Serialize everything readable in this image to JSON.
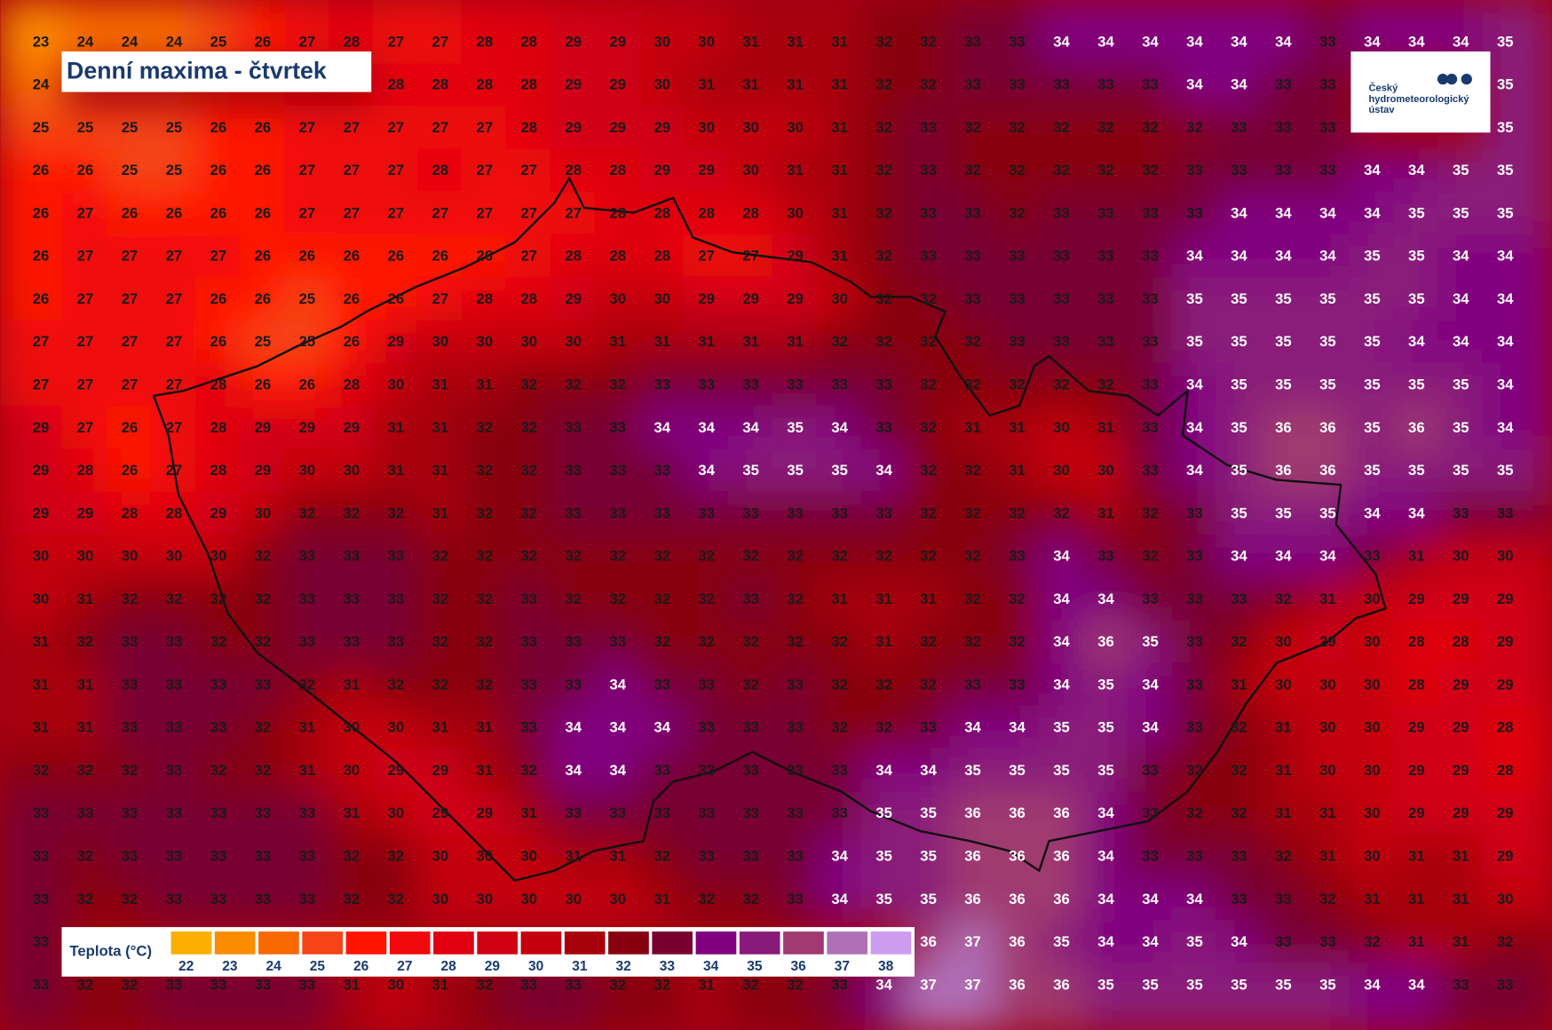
{
  "title": "Denní maxima - čtvrtek",
  "logo": {
    "lines": [
      "Český",
      "hydrometeorologický",
      "ústav"
    ]
  },
  "legend": {
    "title": "Teplota (°C)",
    "items": [
      {
        "value": 22,
        "color": "#fbb000"
      },
      {
        "value": 23,
        "color": "#fb8c00"
      },
      {
        "value": 24,
        "color": "#f86a00"
      },
      {
        "value": 25,
        "color": "#f44418"
      },
      {
        "value": 26,
        "color": "#ff1400"
      },
      {
        "value": 27,
        "color": "#f00a0a"
      },
      {
        "value": 28,
        "color": "#e00010"
      },
      {
        "value": 29,
        "color": "#d00012"
      },
      {
        "value": 30,
        "color": "#c4000e"
      },
      {
        "value": 31,
        "color": "#a8000a"
      },
      {
        "value": 32,
        "color": "#880010"
      },
      {
        "value": 33,
        "color": "#780030"
      },
      {
        "value": 34,
        "color": "#820080"
      },
      {
        "value": 35,
        "color": "#8a1a7a"
      },
      {
        "value": 36,
        "color": "#a03a70"
      },
      {
        "value": 37,
        "color": "#b070b8"
      },
      {
        "value": 38,
        "color": "#cc9cf0"
      }
    ]
  },
  "grid": {
    "rows": [
      [
        23,
        24,
        24,
        24,
        25,
        26,
        27,
        28,
        27,
        27,
        28,
        28,
        29,
        29,
        30,
        30,
        31,
        31,
        31,
        32,
        32,
        33,
        33,
        34,
        34,
        34,
        34,
        34,
        34,
        33,
        34,
        34,
        34,
        35
      ],
      [
        24,
        null,
        null,
        null,
        null,
        null,
        null,
        null,
        28,
        28,
        28,
        28,
        29,
        29,
        30,
        31,
        31,
        31,
        31,
        32,
        32,
        33,
        33,
        33,
        33,
        33,
        34,
        34,
        33,
        33,
        null,
        null,
        null,
        35
      ],
      [
        25,
        25,
        25,
        25,
        26,
        26,
        27,
        27,
        27,
        27,
        27,
        28,
        29,
        29,
        29,
        30,
        30,
        30,
        31,
        32,
        33,
        32,
        32,
        32,
        32,
        32,
        32,
        33,
        33,
        33,
        null,
        null,
        null,
        35
      ],
      [
        26,
        26,
        25,
        25,
        26,
        26,
        27,
        27,
        27,
        28,
        27,
        27,
        28,
        28,
        29,
        29,
        30,
        31,
        31,
        32,
        33,
        32,
        32,
        32,
        32,
        32,
        33,
        33,
        33,
        33,
        34,
        34,
        35,
        35
      ],
      [
        26,
        27,
        26,
        26,
        26,
        26,
        27,
        27,
        27,
        27,
        27,
        27,
        27,
        28,
        28,
        28,
        28,
        30,
        31,
        32,
        33,
        33,
        32,
        33,
        33,
        33,
        33,
        34,
        34,
        34,
        34,
        35,
        35,
        35
      ],
      [
        26,
        27,
        27,
        27,
        27,
        26,
        26,
        26,
        26,
        26,
        26,
        27,
        28,
        28,
        28,
        27,
        27,
        29,
        31,
        32,
        33,
        33,
        33,
        33,
        33,
        33,
        34,
        34,
        34,
        34,
        35,
        35,
        34,
        34
      ],
      [
        26,
        27,
        27,
        27,
        26,
        26,
        25,
        26,
        26,
        27,
        28,
        28,
        29,
        30,
        30,
        29,
        29,
        29,
        30,
        32,
        32,
        33,
        33,
        33,
        33,
        33,
        35,
        35,
        35,
        35,
        35,
        35,
        34,
        34
      ],
      [
        27,
        27,
        27,
        27,
        26,
        25,
        25,
        26,
        29,
        30,
        30,
        30,
        30,
        31,
        31,
        31,
        31,
        31,
        32,
        32,
        32,
        32,
        33,
        33,
        33,
        33,
        35,
        35,
        35,
        35,
        35,
        34,
        34,
        34
      ],
      [
        27,
        27,
        27,
        27,
        28,
        26,
        26,
        28,
        30,
        31,
        31,
        32,
        32,
        32,
        33,
        33,
        33,
        33,
        33,
        33,
        32,
        32,
        32,
        32,
        32,
        33,
        34,
        35,
        35,
        35,
        35,
        35,
        35,
        34
      ],
      [
        29,
        27,
        26,
        27,
        28,
        29,
        29,
        29,
        31,
        31,
        32,
        32,
        33,
        33,
        34,
        34,
        34,
        35,
        34,
        33,
        32,
        31,
        31,
        30,
        31,
        33,
        34,
        35,
        36,
        36,
        35,
        36,
        35,
        34
      ],
      [
        29,
        28,
        26,
        27,
        28,
        29,
        30,
        30,
        31,
        31,
        32,
        32,
        33,
        33,
        33,
        34,
        35,
        35,
        35,
        34,
        32,
        32,
        31,
        30,
        30,
        33,
        34,
        35,
        36,
        36,
        35,
        35,
        35,
        35
      ],
      [
        29,
        29,
        28,
        28,
        29,
        30,
        32,
        32,
        32,
        31,
        32,
        32,
        33,
        33,
        33,
        33,
        33,
        33,
        33,
        33,
        32,
        32,
        32,
        32,
        31,
        32,
        33,
        35,
        35,
        35,
        34,
        34,
        33,
        33
      ],
      [
        30,
        30,
        30,
        30,
        30,
        32,
        33,
        33,
        33,
        32,
        32,
        32,
        32,
        32,
        32,
        32,
        32,
        32,
        32,
        32,
        32,
        32,
        33,
        34,
        33,
        32,
        33,
        34,
        34,
        34,
        33,
        31,
        30,
        30
      ],
      [
        30,
        31,
        32,
        32,
        32,
        32,
        33,
        33,
        33,
        32,
        32,
        33,
        32,
        32,
        32,
        32,
        33,
        32,
        31,
        31,
        31,
        32,
        32,
        34,
        34,
        33,
        33,
        33,
        32,
        31,
        30,
        29,
        29,
        29
      ],
      [
        31,
        32,
        33,
        33,
        32,
        32,
        33,
        33,
        33,
        32,
        32,
        33,
        33,
        33,
        32,
        32,
        32,
        32,
        32,
        31,
        32,
        32,
        32,
        34,
        36,
        35,
        33,
        32,
        30,
        29,
        30,
        28,
        28,
        29
      ],
      [
        31,
        31,
        33,
        33,
        33,
        33,
        32,
        31,
        32,
        32,
        32,
        33,
        33,
        34,
        33,
        33,
        32,
        33,
        32,
        32,
        32,
        33,
        33,
        34,
        35,
        34,
        33,
        31,
        30,
        30,
        30,
        28,
        29,
        29
      ],
      [
        31,
        31,
        33,
        33,
        33,
        32,
        31,
        30,
        30,
        31,
        31,
        33,
        34,
        34,
        34,
        33,
        33,
        33,
        32,
        32,
        33,
        34,
        34,
        35,
        35,
        34,
        33,
        32,
        31,
        30,
        30,
        29,
        29,
        28
      ],
      [
        32,
        32,
        32,
        33,
        32,
        32,
        31,
        30,
        29,
        29,
        31,
        32,
        34,
        34,
        33,
        33,
        33,
        33,
        33,
        34,
        34,
        35,
        35,
        35,
        35,
        33,
        32,
        32,
        31,
        30,
        30,
        29,
        29,
        28
      ],
      [
        33,
        33,
        33,
        33,
        33,
        33,
        33,
        31,
        30,
        29,
        29,
        31,
        33,
        33,
        33,
        33,
        33,
        33,
        33,
        35,
        35,
        36,
        36,
        36,
        34,
        33,
        32,
        32,
        31,
        31,
        30,
        29,
        29,
        29
      ],
      [
        33,
        32,
        33,
        33,
        33,
        33,
        33,
        32,
        32,
        30,
        30,
        30,
        31,
        31,
        32,
        33,
        33,
        33,
        34,
        35,
        35,
        36,
        36,
        36,
        34,
        33,
        33,
        33,
        32,
        31,
        30,
        31,
        31,
        29
      ],
      [
        33,
        32,
        32,
        33,
        33,
        33,
        33,
        32,
        32,
        30,
        30,
        30,
        30,
        30,
        31,
        32,
        32,
        33,
        34,
        35,
        35,
        36,
        36,
        36,
        34,
        34,
        34,
        33,
        33,
        32,
        31,
        31,
        31,
        30
      ],
      [
        33,
        null,
        null,
        null,
        null,
        null,
        null,
        null,
        null,
        null,
        null,
        null,
        null,
        null,
        null,
        null,
        null,
        null,
        null,
        null,
        36,
        37,
        36,
        35,
        34,
        34,
        35,
        34,
        33,
        33,
        32,
        31,
        31,
        32
      ],
      [
        33,
        32,
        32,
        33,
        33,
        33,
        33,
        31,
        30,
        31,
        32,
        33,
        33,
        32,
        32,
        31,
        32,
        32,
        33,
        34,
        37,
        37,
        36,
        36,
        35,
        35,
        35,
        35,
        35,
        35,
        34,
        34,
        33,
        33
      ]
    ]
  }
}
